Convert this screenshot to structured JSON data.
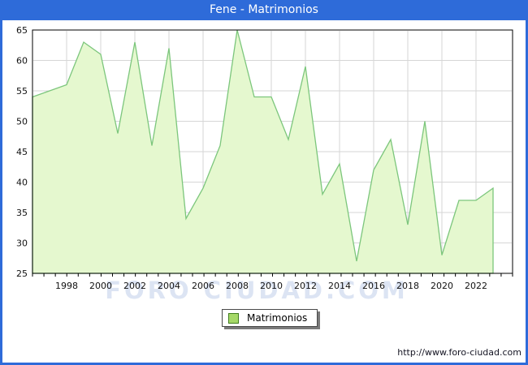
{
  "title": "Fene - Matrimonios",
  "watermark_text": "FORO CIUDAD.COM",
  "legend": {
    "label": "Matrimonios"
  },
  "footer": {
    "url_label": "http://www.foro-ciudad.com"
  },
  "colors": {
    "frame_blue": "#2e6bd9",
    "title_text": "#ffffff",
    "area_fill": "#e5f8cf",
    "area_line": "#7cc67c",
    "grid": "#d6d6d6",
    "plot_border": "#000000",
    "axis_text": "#111111",
    "watermark": "#dce4f3",
    "legend_swatch_fill": "#a6d968",
    "legend_swatch_border": "#417d1e",
    "footer_text": "#141422"
  },
  "chart_data": {
    "type": "area",
    "title": "Fene - Matrimonios",
    "x": [
      1996,
      1997,
      1998,
      1999,
      2000,
      2001,
      2002,
      2003,
      2004,
      2005,
      2006,
      2007,
      2008,
      2009,
      2010,
      2011,
      2012,
      2013,
      2014,
      2015,
      2016,
      2017,
      2018,
      2019,
      2020,
      2021,
      2022,
      2023
    ],
    "series": [
      {
        "name": "Matrimonios",
        "values": [
          54,
          55,
          56,
          63,
          61,
          48,
          63,
          46,
          62,
          34,
          39,
          46,
          65,
          54,
          54,
          47,
          59,
          38,
          43,
          27,
          42,
          47,
          33,
          50,
          28,
          37,
          37,
          39
        ]
      }
    ],
    "ylim": [
      25,
      65
    ],
    "ytick_step": 5,
    "ytick_labels": [
      "25",
      "30",
      "35",
      "40",
      "45",
      "50",
      "55",
      "60",
      "65"
    ],
    "xtick_labels": [
      "1998",
      "2000",
      "2002",
      "2004",
      "2006",
      "2008",
      "2010",
      "2012",
      "2014",
      "2016",
      "2018",
      "2020",
      "2022"
    ],
    "grid": true,
    "legend_position": "bottom-center"
  }
}
